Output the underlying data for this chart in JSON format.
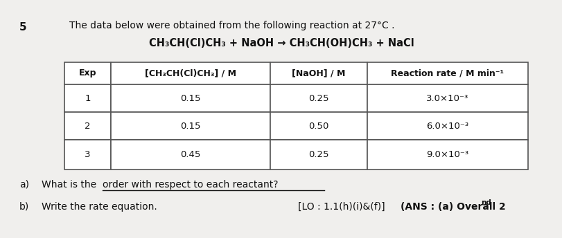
{
  "question_number": "5",
  "intro_text": "The data below were obtained from the following reaction at 27°C .",
  "reaction": "CH₃CH(Cl)CH₃ + NaOH → CH₃CH(OH)CH₃ + NaCl",
  "table_headers": [
    "Exp",
    "[CH₃CH(Cl)CH₃] / M",
    "[NaOH] / M",
    "Reaction rate / M min⁻¹"
  ],
  "table_data": [
    [
      "1",
      "0.15",
      "0.25",
      "3.0×10⁻³"
    ],
    [
      "2",
      "0.15",
      "0.50",
      "6.0×10⁻³"
    ],
    [
      "3",
      "0.45",
      "0.25",
      "9.0×10⁻³"
    ]
  ],
  "part_a_label": "a)",
  "part_a_text_before_underline": "What is the ",
  "part_a_underlined": "order with respect to each reactant?",
  "part_b_label": "b)",
  "part_b_text": "Write the rate equation.",
  "lo_text": "[LO : 1.1(h)(i)&(f)]",
  "ans_text": "(ANS : (a) Overall 2",
  "ans_superscript": "nd",
  "bg_color": "#f0efed",
  "text_color": "#111111",
  "table_bg": "#ffffff",
  "table_edge": "#555555"
}
